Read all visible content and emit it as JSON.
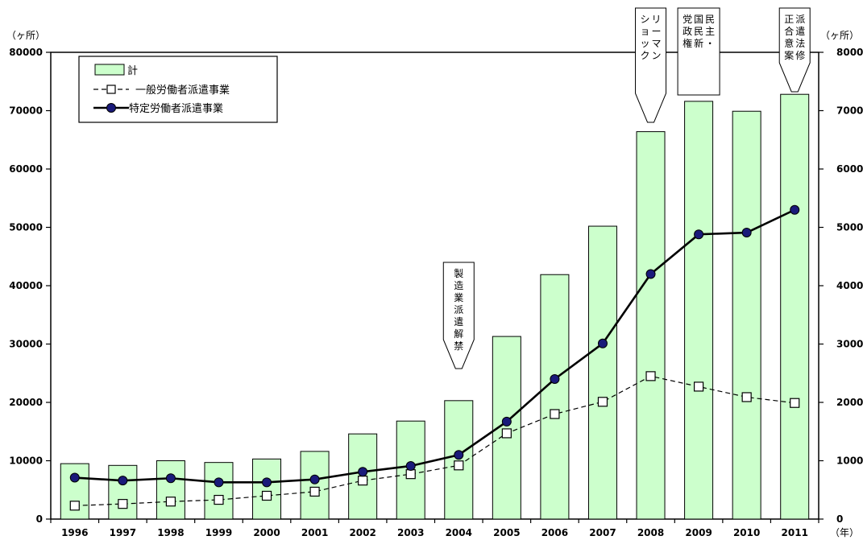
{
  "chart_data": {
    "type": "bar",
    "categories": [
      "1996",
      "1997",
      "1998",
      "1999",
      "2000",
      "2001",
      "2002",
      "2003",
      "2004",
      "2005",
      "2006",
      "2007",
      "2008",
      "2009",
      "2010",
      "2011"
    ],
    "series": [
      {
        "name": "計",
        "kind": "bar",
        "color": "#ccffcc",
        "values": [
          9500,
          9200,
          10000,
          9700,
          10300,
          11600,
          14600,
          16800,
          20300,
          31300,
          41900,
          50200,
          66400,
          71600,
          69900,
          72800
        ]
      },
      {
        "name": "一般労働者派遣事業",
        "kind": "line",
        "style": "dashed",
        "marker": "open-square",
        "color": "#000000",
        "values": [
          2300,
          2600,
          3000,
          3300,
          4000,
          4700,
          6600,
          7700,
          9200,
          14700,
          18000,
          20100,
          24500,
          22700,
          20900,
          19900
        ]
      },
      {
        "name": "特定労働者派遣事業",
        "kind": "line",
        "style": "solid",
        "marker": "filled-circle",
        "color": "#000000",
        "marker_color": "#1a1a7a",
        "values": [
          7100,
          6600,
          7000,
          6300,
          6300,
          6800,
          8100,
          9100,
          11000,
          16700,
          24000,
          30100,
          42000,
          48800,
          49100,
          53000
        ]
      }
    ],
    "ylim": [
      0,
      80000
    ],
    "yticks": [
      0,
      10000,
      20000,
      30000,
      40000,
      50000,
      60000,
      70000,
      80000
    ],
    "y_unit_left": "（ヶ所）",
    "y_unit_right": "（ヶ所）",
    "x_unit": "（年）",
    "legend_position": "top-left",
    "grid": false,
    "annotations": [
      {
        "year": "2004",
        "text": "製造業派遣解禁"
      },
      {
        "year": "2008",
        "text": "リーマンショック"
      },
      {
        "year": "2009",
        "text": "民主・国民新党政権"
      },
      {
        "year": "2011",
        "text": "派遣法修正合意案"
      }
    ]
  }
}
